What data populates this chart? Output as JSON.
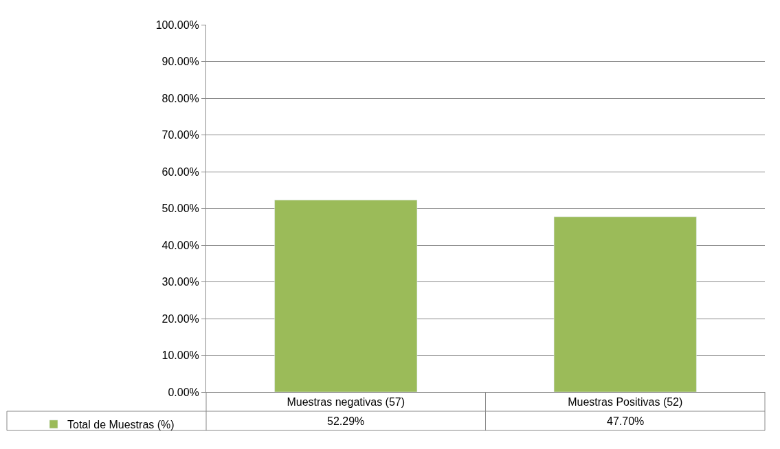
{
  "chart_data": {
    "type": "bar",
    "categories": [
      "Muestras negativas (57)",
      "Muestras Positivas (52)"
    ],
    "series": [
      {
        "name": "Total de Muestras (%)",
        "color": "#9bbb59",
        "values": [
          52.29,
          47.7
        ],
        "value_labels": [
          "52.29%",
          "47.70%"
        ]
      }
    ],
    "ylim": [
      0,
      100
    ],
    "yticks": [
      {
        "value": 0,
        "label": "0.00%"
      },
      {
        "value": 10,
        "label": "10.00%"
      },
      {
        "value": 20,
        "label": "20.00%"
      },
      {
        "value": 30,
        "label": "30.00%"
      },
      {
        "value": 40,
        "label": "40.00%"
      },
      {
        "value": 50,
        "label": "50.00%"
      },
      {
        "value": 60,
        "label": "60.00%"
      },
      {
        "value": 70,
        "label": "70.00%"
      },
      {
        "value": 80,
        "label": "80.00%"
      },
      {
        "value": 90,
        "label": "90.00%"
      },
      {
        "value": 100,
        "label": "100.00%"
      }
    ],
    "grid": "y",
    "legend": "bottom left"
  }
}
